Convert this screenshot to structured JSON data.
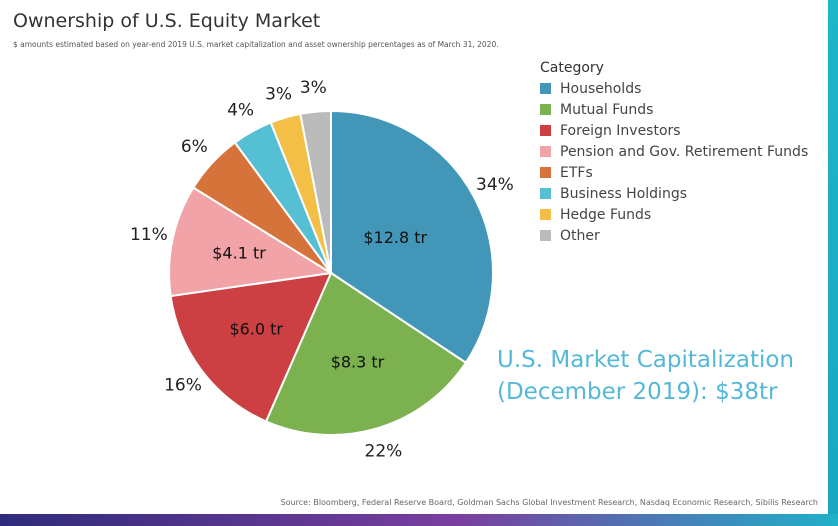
{
  "chart_data": {
    "type": "pie",
    "title": "Ownership of U.S. Equity Market",
    "subtitle": "$ amounts estimated based on year-end 2019 U.S. market capitalization and asset ownership percentages as of March 31, 2020.",
    "legend_title": "Category",
    "legend_placement": "top-right",
    "start_angle_deg": 0,
    "direction": "clockwise",
    "slices": [
      {
        "category": "Households",
        "percent": 34,
        "percent_label": "34%",
        "value_label": "$12.8 tr",
        "color": "#4297b8"
      },
      {
        "category": "Mutual Funds",
        "percent": 22,
        "percent_label": "22%",
        "value_label": "$8.3 tr",
        "color": "#7cb150"
      },
      {
        "category": "Foreign Investors",
        "percent": 16,
        "percent_label": "16%",
        "value_label": "$6.0 tr",
        "color": "#cc4043"
      },
      {
        "category": "Pension and Gov. Retirement Funds",
        "percent": 11,
        "percent_label": "11%",
        "value_label": "$4.1 tr",
        "color": "#f2a3a8"
      },
      {
        "category": "ETFs",
        "percent": 6,
        "percent_label": "6%",
        "value_label": "",
        "color": "#d5733a"
      },
      {
        "category": "Business Holdings",
        "percent": 4,
        "percent_label": "4%",
        "value_label": "",
        "color": "#55bfd3"
      },
      {
        "category": "Hedge Funds",
        "percent": 3,
        "percent_label": "3%",
        "value_label": "",
        "color": "#f4bf47"
      },
      {
        "category": "Other",
        "percent": 3,
        "percent_label": "3%",
        "value_label": "",
        "color": "#bbbbbb"
      }
    ],
    "annotation_line1": "U.S. Market Capitalization",
    "annotation_line2": "(December 2019): $38tr",
    "source": "Source: Bloomberg, Federal Reserve Board, Goldman Sachs Global Investment Research, Nasdaq Economic Research, Sibilis Research"
  }
}
